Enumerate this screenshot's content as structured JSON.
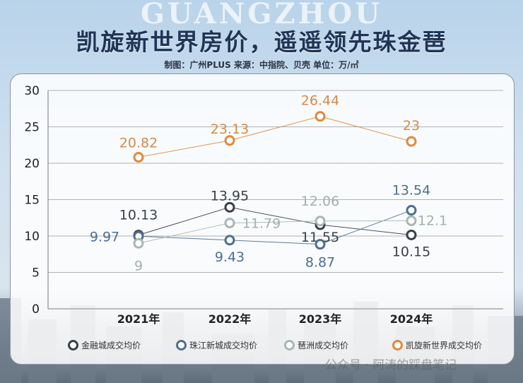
{
  "background_text": "GUANGZHOU",
  "title": "凯旋新世界房价，遥遥领先珠金琶",
  "subtitle": "制图：广州PLUS   来源：中指院、贝壳   单位：万/㎡",
  "watermark": "公众号 · 阿涛的踩盘笔记",
  "chart_data": {
    "type": "line",
    "title": "凯旋新世界房价，遥遥领先珠金琶",
    "xlabel": "",
    "ylabel": "",
    "unit": "万/㎡",
    "categories": [
      "2021年",
      "2022年",
      "2023年",
      "2024年"
    ],
    "ylim": [
      0,
      30
    ],
    "yticks": [
      0,
      5,
      10,
      15,
      20,
      25,
      30
    ],
    "grid": true,
    "legend_placement": "bottom",
    "series": [
      {
        "name": "金融城成交均价",
        "values": [
          10.13,
          13.95,
          11.55,
          10.15
        ],
        "color": "#3b4048",
        "label_color": "#3b4048"
      },
      {
        "name": "珠江新城成交均价",
        "values": [
          9.97,
          9.43,
          8.87,
          13.54
        ],
        "color": "#4d6f92",
        "label_color": "#4d6f92"
      },
      {
        "name": "琶洲成交均价",
        "values": [
          9,
          11.79,
          12.06,
          12.1
        ],
        "color": "#a8b8b1",
        "label_color": "#a3b1ab"
      },
      {
        "name": "凯旋新世界成交均价",
        "values": [
          20.82,
          23.13,
          26.44,
          23
        ],
        "color": "#e0893d",
        "label_color": "#d48a4c"
      }
    ]
  }
}
